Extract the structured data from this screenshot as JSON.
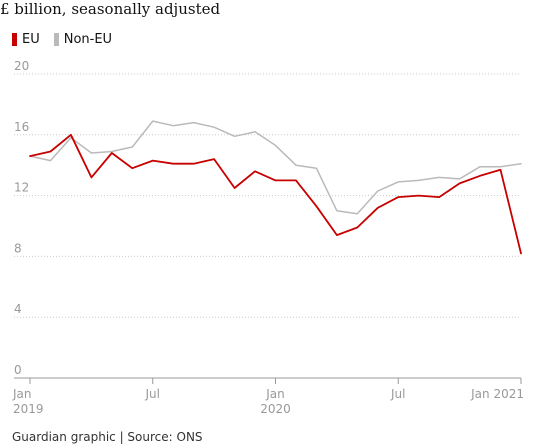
{
  "chart_data": {
    "type": "line",
    "subtitle": "£ billion, seasonally adjusted",
    "x": [
      "2019-01",
      "2019-02",
      "2019-03",
      "2019-04",
      "2019-05",
      "2019-06",
      "2019-07",
      "2019-08",
      "2019-09",
      "2019-10",
      "2019-11",
      "2019-12",
      "2020-01",
      "2020-02",
      "2020-03",
      "2020-04",
      "2020-05",
      "2020-06",
      "2020-07",
      "2020-08",
      "2020-09",
      "2020-10",
      "2020-11",
      "2020-12",
      "2021-01"
    ],
    "series": [
      {
        "name": "EU",
        "color": "#c70000",
        "values": [
          14.6,
          14.9,
          16.0,
          13.2,
          14.8,
          13.8,
          14.3,
          14.1,
          14.1,
          14.4,
          12.5,
          13.6,
          13.0,
          13.0,
          11.3,
          9.4,
          9.9,
          11.2,
          11.9,
          12.0,
          11.9,
          12.8,
          13.3,
          13.7,
          8.2
        ]
      },
      {
        "name": "Non-EU",
        "color": "#bababa",
        "values": [
          14.6,
          14.3,
          15.8,
          14.8,
          14.9,
          15.2,
          16.9,
          16.6,
          16.8,
          16.5,
          15.9,
          16.2,
          15.3,
          14.0,
          13.8,
          11.0,
          10.8,
          12.3,
          12.9,
          13.0,
          13.2,
          13.1,
          13.9,
          13.9,
          14.1
        ]
      }
    ],
    "yticks": [
      "0",
      "4",
      "8",
      "12",
      "16",
      "20"
    ],
    "ylim": [
      0,
      20
    ],
    "xticks": [
      {
        "label": "Jan",
        "sub": "2019",
        "x": "2019-01"
      },
      {
        "label": "Jul",
        "sub": "",
        "x": "2019-07"
      },
      {
        "label": "Jan",
        "sub": "2020",
        "x": "2020-01"
      },
      {
        "label": "Jul",
        "sub": "",
        "x": "2020-07"
      },
      {
        "label": "Jan 2021",
        "sub": "",
        "x": "2021-01"
      }
    ],
    "legend_position": "top-left",
    "grid": "horizontal dotted"
  },
  "footer": "Guardian graphic | Source: ONS"
}
